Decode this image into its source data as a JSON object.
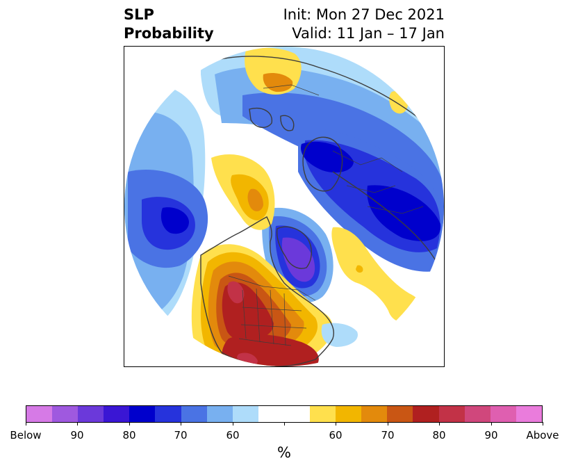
{
  "title": {
    "left_line1": "SLP",
    "left_line2": "Probability",
    "right_line1": "Init: Mon 27 Dec 2021",
    "right_line2": "Valid: 11 Jan – 17 Jan"
  },
  "map": {
    "projection": "north-polar-stereographic",
    "features": [
      "continents",
      "country-borders",
      "us-state-borders"
    ]
  },
  "colorbar": {
    "colors": [
      "#d67ae6",
      "#9f59df",
      "#6b39da",
      "#3a16d4",
      "#0000cc",
      "#2633dc",
      "#4a73e4",
      "#78b0f0",
      "#aedcfa",
      "#ffffff",
      "#ffffff",
      "#ffe04d",
      "#f2b600",
      "#e38a0c",
      "#c95614",
      "#b02020",
      "#c23247",
      "#d0477c",
      "#df5fb0",
      "#ea7cdc"
    ],
    "tick_labels": [
      "Below",
      "90",
      "80",
      "70",
      "60",
      "60",
      "70",
      "80",
      "90",
      "Above"
    ],
    "unit": "%"
  }
}
